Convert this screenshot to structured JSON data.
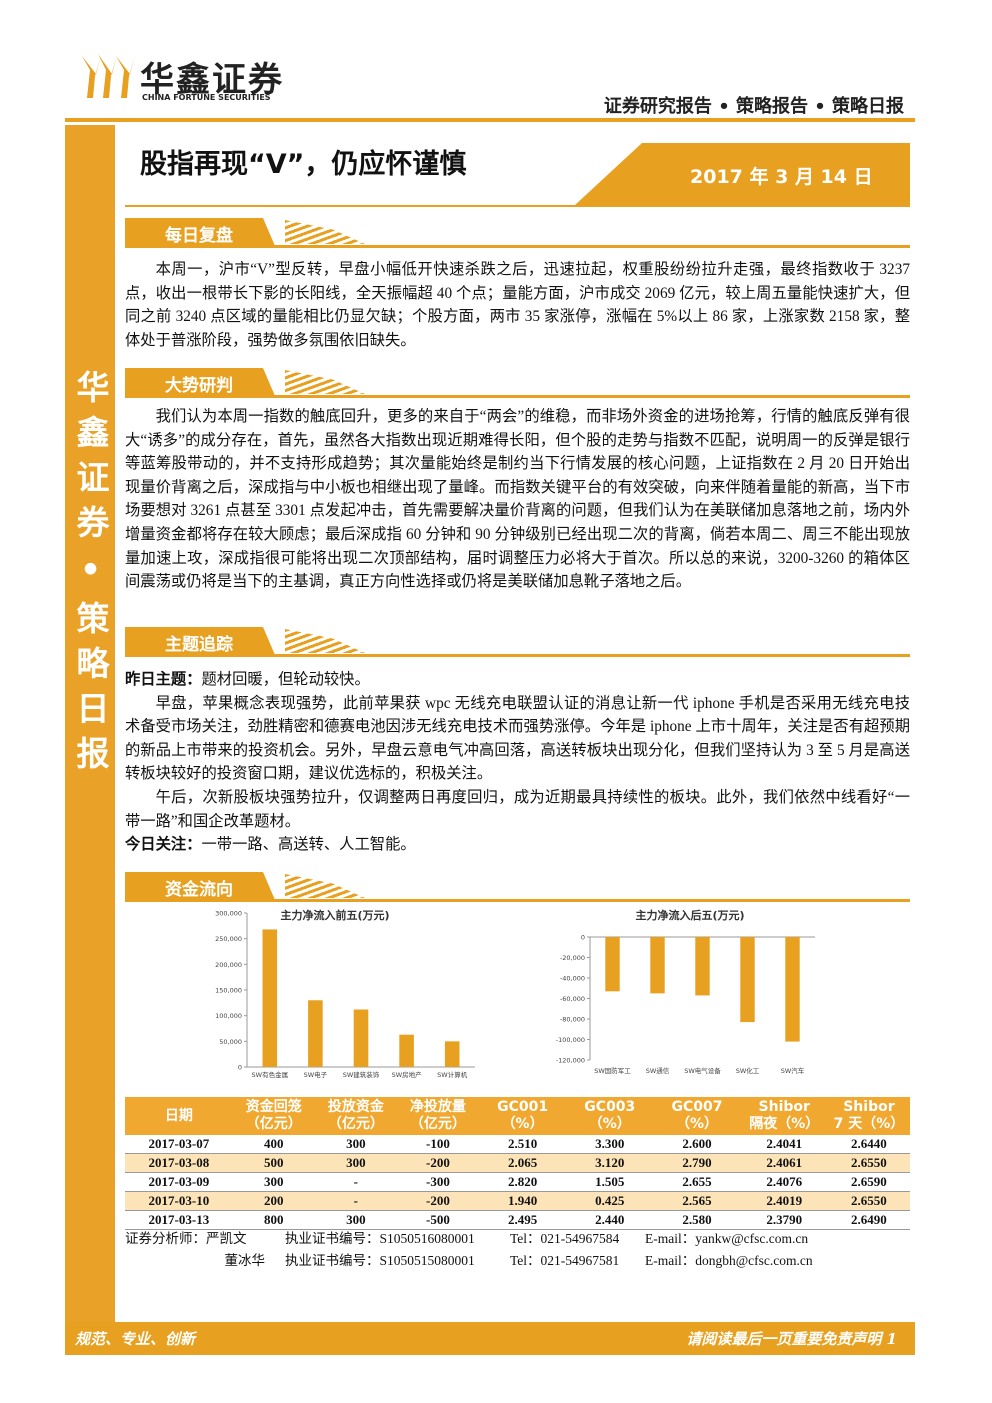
{
  "header": {
    "logo": "华鑫证券",
    "logo_en": "CHINA FORTUNE SECURITIES",
    "report_type": "证券研究报告 • 策略报告 • 策略日报",
    "title": "股指再现“V”，仍应怀谨慎",
    "date": "2017 年 3 月 14 日"
  },
  "sidebar": "华鑫证券•策略日报",
  "sections": [
    {
      "heading": "每日复盘",
      "paragraphs": [
        {
          "text": "本周一，沪市“V”型反转，早盘小幅低开快速杀跌之后，迅速拉起，权重股纷纷拉升走强，最终指数收于 3237 点，收出一根带长下影的长阳线，全天振幅超 40 个点；量能方面，沪市成交 2069 亿元，较上周五量能快速扩大，但同之前 3240 点区域的量能相比仍显欠缺；个股方面，两市 35 家涨停，涨幅在 5%以上 86 家，上涨家数 2158 家，整体处于普涨阶段，强势做多氛围依旧缺失。"
        }
      ]
    },
    {
      "heading": "大势研判",
      "paragraphs": [
        {
          "text": "我们认为本周一指数的触底回升，更多的来自于“两会”的维稳，而非场外资金的进场抢筹，行情的触底反弹有很大“诱多”的成分存在，首先，虽然各大指数出现近期难得长阳，但个股的走势与指数不匹配，说明周一的反弹是银行等蓝筹股带动的，并不支持形成趋势；其次量能始终是制约当下行情发展的核心问题，上证指数在 2 月 20 日开始出现量价背离之后，深成指与中小板也相继出现了量峰。而指数关键平台的有效突破，向来伴随着量能的新高，当下市场要想对 3261 点甚至 3301 点发起冲击，首先需要解决量价背离的问题，但我们认为在美联储加息落地之前，场内外增量资金都将存在较大顾虑；最后深成指 60 分钟和 90 分钟级别已经出现二次的背离，倘若本周二、周三不能出现放量加速上攻，深成指很可能将出现二次顶部结构，届时调整压力必将大于首次。所以总的来说，3200-3260 的箱体区间震荡或仍将是当下的主基调，真正方向性选择或仍将是美联储加息靴子落地之后。"
        }
      ]
    },
    {
      "heading": "主题追踪",
      "paragraphs": [
        {
          "lead": "昨日主题：",
          "text": "题材回暖，但轮动较快。"
        },
        {
          "text": "早盘，苹果概念表现强势，此前苹果获 wpc 无线充电联盟认证的消息让新一代 iphone 手机是否采用无线充电技术备受市场关注，劲胜精密和德赛电池因涉无线充电技术而强势涨停。今年是 iphone 上市十周年，关注是否有超预期的新品上市带来的投资机会。另外，早盘云意电气冲高回落，高送转板块出现分化，但我们坚持认为 3 至 5 月是高送转板块较好的投资窗口期，建议优选标的，积极关注。"
        },
        {
          "text": "午后，次新股板块强势拉升，仅调整两日再度回归，成为近期最具持续性的板块。此外，我们依然中线看好“一带一路”和国企改革题材。"
        },
        {
          "lead": "今日关注：",
          "text": "一带一路、高送转、人工智能。"
        }
      ]
    },
    {
      "heading": "资金流向",
      "paragraphs": []
    }
  ],
  "chart_data": [
    {
      "type": "bar",
      "title": "主力净流入前五(万元)",
      "categories": [
        "SW有色金属",
        "SW电子",
        "SW建筑装饰",
        "SW房地产",
        "SW计算机"
      ],
      "values": [
        268000,
        130000,
        112000,
        63000,
        50000
      ],
      "color": "#e8a020",
      "ylim": [
        0,
        300000
      ],
      "yticks": [
        0,
        {
          "value": 50000,
          "label": "50,000"
        },
        {
          "value": 100000,
          "label": "100,000"
        },
        {
          "value": 150000,
          "label": "150,000"
        },
        {
          "value": 200000,
          "label": "200,000"
        },
        {
          "value": 250000,
          "label": "250,000"
        },
        {
          "value": 300000,
          "label": "300,000"
        }
      ]
    },
    {
      "type": "bar",
      "title": "主力净流入后五(万元)",
      "categories": [
        "SW国防军工",
        "SW通信",
        "SW电气设备",
        "SW化工",
        "SW汽车"
      ],
      "values": [
        -53000,
        -55000,
        -57000,
        -83000,
        -102000
      ],
      "color": "#e8a020",
      "ylim": [
        -120000,
        0
      ],
      "yticks": [
        0,
        {
          "value": -20000,
          "label": "-20,000"
        },
        {
          "value": -40000,
          "label": "-40,000"
        },
        {
          "value": -60000,
          "label": "-60,000"
        },
        {
          "value": -80000,
          "label": "-80,000"
        },
        {
          "value": -100000,
          "label": "-100,000"
        },
        {
          "value": -120000,
          "label": "-120,000"
        }
      ]
    }
  ],
  "table": {
    "header": [
      [
        "日期"
      ],
      [
        "资金回笼",
        "（亿元）"
      ],
      [
        "投放资金",
        "（亿元）"
      ],
      [
        "净投放量",
        "（亿元）"
      ],
      [
        "GC001",
        "（%）"
      ],
      [
        "GC003",
        "（%）"
      ],
      [
        "GC007",
        "（%）"
      ],
      [
        "Shibor",
        "隔夜（%）"
      ],
      [
        "Shibor",
        "7 天（%）"
      ]
    ],
    "rows": [
      [
        "2017-03-07",
        "400",
        "300",
        "-100",
        "2.510",
        "3.300",
        "2.600",
        "2.4041",
        "2.6440"
      ],
      [
        "2017-03-08",
        "500",
        "300",
        "-200",
        "2.065",
        "3.120",
        "2.790",
        "2.4061",
        "2.6550"
      ],
      [
        "2017-03-09",
        "300",
        "-",
        "-300",
        "2.820",
        "1.505",
        "2.655",
        "2.4076",
        "2.6590"
      ],
      [
        "2017-03-10",
        "200",
        "-",
        "-200",
        "1.940",
        "0.425",
        "2.565",
        "2.4019",
        "2.6550"
      ],
      [
        "2017-03-13",
        "800",
        "300",
        "-500",
        "2.495",
        "2.440",
        "2.580",
        "2.3790",
        "2.6490"
      ]
    ]
  },
  "analysts": [
    [
      "证券分析师：严凯文",
      "执业证书编号：S1050516080001",
      "Tel：021-54967584",
      "E-mail：yankw@cfsc.com.cn"
    ],
    [
      "董冰华",
      "执业证书编号：S1050515080001",
      "Tel：021-54967581",
      "E-mail：dongbh@cfsc.com.cn"
    ]
  ],
  "footer": {
    "left": "规范、专业、创新",
    "right": "请阅读最后一页重要免责声明 1"
  }
}
